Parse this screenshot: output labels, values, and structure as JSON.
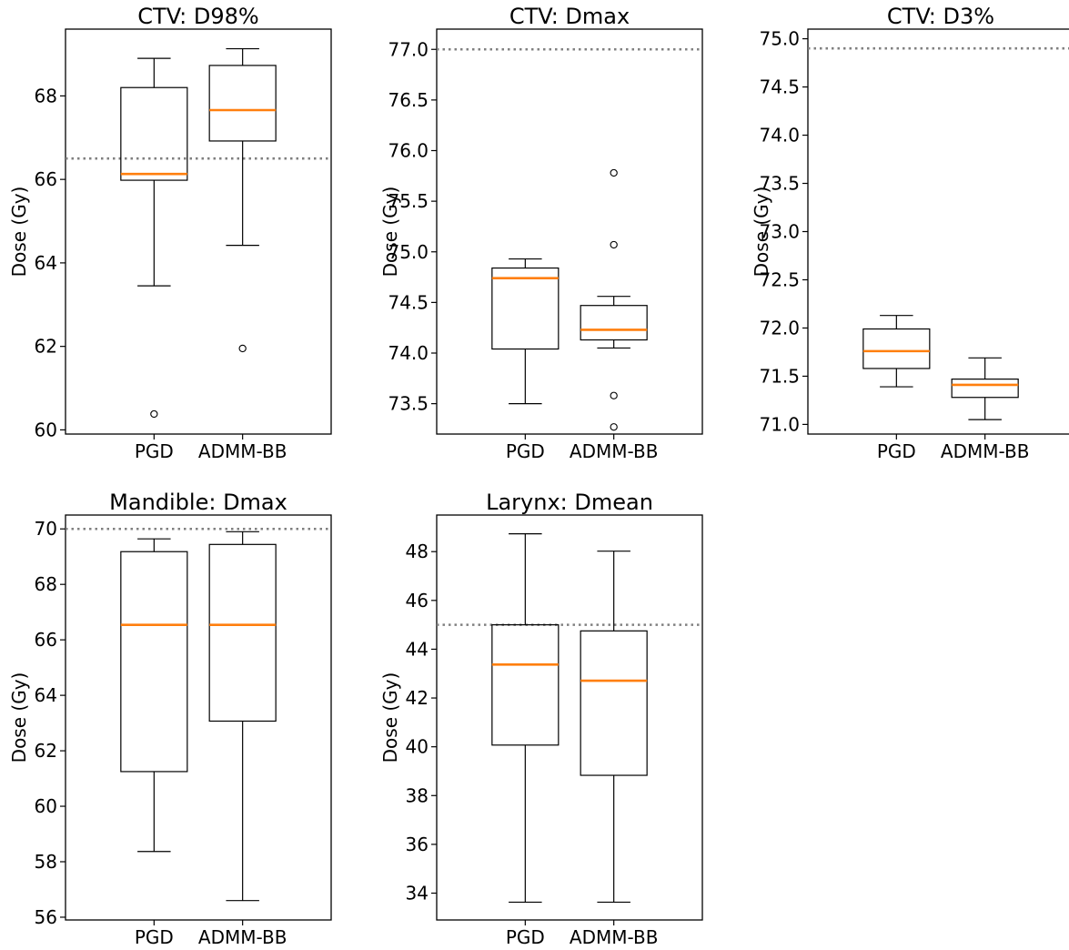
{
  "chart_data": [
    {
      "type": "box",
      "title": "CTV: D98%",
      "ylabel": "Dose (Gy)",
      "categories": [
        "PGD",
        "ADMM-BB"
      ],
      "ylim": [
        59.9,
        69.6
      ],
      "yticks": [
        60,
        62,
        64,
        66,
        68
      ],
      "reference_line": 66.5,
      "boxes": [
        {
          "whisker_low": 63.45,
          "q1": 65.98,
          "median": 66.13,
          "q3": 68.2,
          "whisker_high": 68.9,
          "outliers": [
            60.38
          ]
        },
        {
          "whisker_low": 64.42,
          "q1": 66.92,
          "median": 67.66,
          "q3": 68.73,
          "whisker_high": 69.13,
          "outliers": [
            61.95
          ]
        }
      ]
    },
    {
      "type": "box",
      "title": "CTV: Dmax",
      "ylabel": "Dose (Gy)",
      "categories": [
        "PGD",
        "ADMM-BB"
      ],
      "ylim": [
        73.2,
        77.2
      ],
      "yticks": [
        73.5,
        74.0,
        74.5,
        75.0,
        75.5,
        76.0,
        76.5,
        77.0
      ],
      "reference_line": 77.0,
      "boxes": [
        {
          "whisker_low": 73.5,
          "q1": 74.04,
          "median": 74.74,
          "q3": 74.84,
          "whisker_high": 74.93,
          "outliers": []
        },
        {
          "whisker_low": 74.05,
          "q1": 74.13,
          "median": 74.23,
          "q3": 74.47,
          "whisker_high": 74.56,
          "outliers": [
            75.78,
            75.07,
            73.58,
            73.27
          ]
        }
      ]
    },
    {
      "type": "box",
      "title": "CTV: D3%",
      "ylabel": "Dose (Gy)",
      "categories": [
        "PGD",
        "ADMM-BB"
      ],
      "ylim": [
        70.9,
        75.1
      ],
      "yticks": [
        71.0,
        71.5,
        72.0,
        72.5,
        73.0,
        73.5,
        74.0,
        74.5,
        75.0
      ],
      "reference_line": 74.9,
      "boxes": [
        {
          "whisker_low": 71.39,
          "q1": 71.58,
          "median": 71.76,
          "q3": 71.99,
          "whisker_high": 72.13,
          "outliers": []
        },
        {
          "whisker_low": 71.05,
          "q1": 71.28,
          "median": 71.41,
          "q3": 71.47,
          "whisker_high": 71.69,
          "outliers": []
        }
      ]
    },
    {
      "type": "box",
      "title": "Mandible: Dmax",
      "ylabel": "Dose (Gy)",
      "categories": [
        "PGD",
        "ADMM-BB"
      ],
      "ylim": [
        55.9,
        70.5
      ],
      "yticks": [
        56,
        58,
        60,
        62,
        64,
        66,
        68,
        70
      ],
      "reference_line": 70.0,
      "boxes": [
        {
          "whisker_low": 58.37,
          "q1": 61.25,
          "median": 66.54,
          "q3": 69.18,
          "whisker_high": 69.64,
          "outliers": []
        },
        {
          "whisker_low": 56.6,
          "q1": 63.07,
          "median": 66.54,
          "q3": 69.44,
          "whisker_high": 69.9,
          "outliers": []
        }
      ]
    },
    {
      "type": "box",
      "title": "Larynx: Dmean",
      "ylabel": "Dose (Gy)",
      "categories": [
        "PGD",
        "ADMM-BB"
      ],
      "ylim": [
        32.9,
        49.5
      ],
      "yticks": [
        34,
        36,
        38,
        40,
        42,
        44,
        46,
        48
      ],
      "reference_line": 45.0,
      "boxes": [
        {
          "whisker_low": 33.63,
          "q1": 40.07,
          "median": 43.37,
          "q3": 45.0,
          "whisker_high": 48.73,
          "outliers": []
        },
        {
          "whisker_low": 33.63,
          "q1": 38.83,
          "median": 42.71,
          "q3": 44.75,
          "whisker_high": 48.02,
          "outliers": []
        }
      ]
    }
  ],
  "colors": {
    "median": "#ff7f0e",
    "box": "#000000",
    "reference_line": "#808080"
  }
}
